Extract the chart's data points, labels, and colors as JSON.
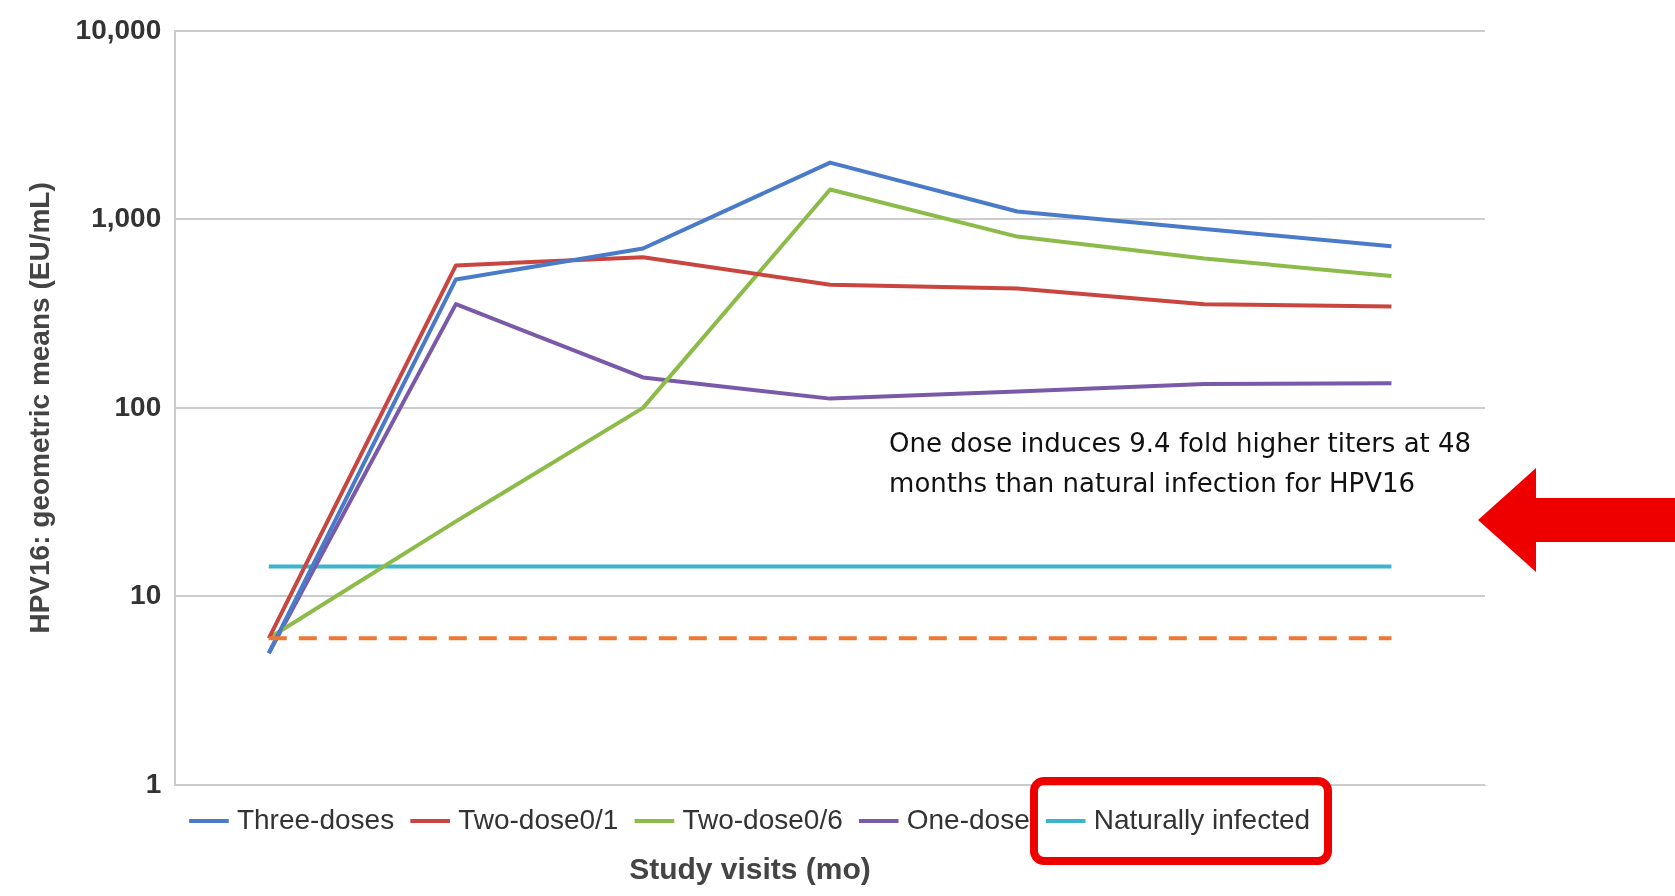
{
  "chart_data": {
    "type": "line",
    "xlabel": "Study visits (mo)",
    "ylabel": "HPV16: geometric means (EU/mL)",
    "categories": [
      null,
      null,
      null,
      null,
      null,
      null,
      null
    ],
    "series": [
      {
        "name": "Three-doses",
        "color": "#4a7bc8",
        "values": [
          5,
          480,
          700,
          2000,
          1100,
          890,
          720
        ]
      },
      {
        "name": "Two-dose0/1",
        "color": "#c9453f",
        "values": [
          6,
          570,
          630,
          450,
          430,
          355,
          345
        ]
      },
      {
        "name": "Two-dose0/6",
        "color": "#8dbb4a",
        "values": [
          6,
          25,
          100,
          1440,
          810,
          620,
          500
        ]
      },
      {
        "name": "One-dose",
        "color": "#7a59a8",
        "values": [
          5,
          355,
          145,
          112,
          122,
          134,
          135
        ]
      },
      {
        "name": "Naturally infected",
        "color": "#3cb4cc",
        "values": [
          14.4,
          14.4,
          14.4,
          14.4,
          14.4,
          14.4,
          14.4
        ]
      }
    ],
    "log": "y",
    "ylim": [
      1,
      10000
    ],
    "yticks": [
      1,
      10,
      100,
      {
        "value": 1000,
        "label": "1,000"
      },
      {
        "value": 10000,
        "label": "10,000"
      }
    ],
    "grid": "y",
    "legend": "bottom",
    "tick_labels": "y",
    "marker": "none",
    "line_style": "solid",
    "ref_lines": [
      {
        "axis": "y",
        "value": 6,
        "color": "#ee7733",
        "line_style": "dashed"
      }
    ],
    "annotations": [
      "One dose induces 9.4 fold higher titers at 48 months than natural infection for HPV16"
    ]
  }
}
